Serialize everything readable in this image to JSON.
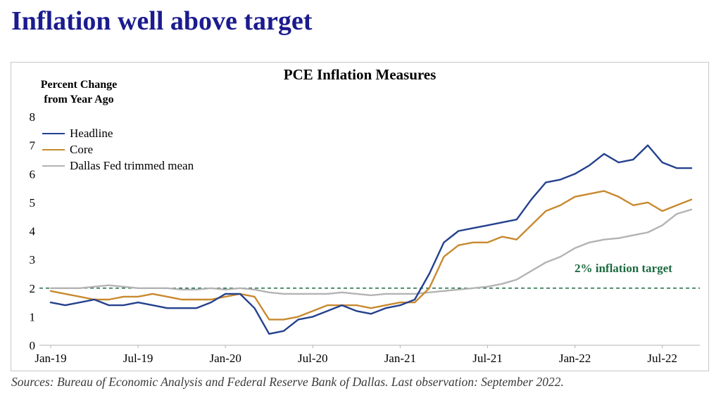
{
  "page": {
    "title": "Inflation well above target",
    "source_note": "Sources: Bureau of Economic Analysis and Federal Reserve Bank of Dallas. Last observation: September 2022."
  },
  "colors": {
    "page_title": "#1b1b8f",
    "headline_line": "#24418e",
    "core_line": "#c8892f",
    "trimmed_mean_line": "#b3b3b3",
    "reference_line": "#1d6b40",
    "axis": "#b3b3b3",
    "chart_border": "#c8c8c8"
  },
  "chart_data": {
    "type": "line",
    "title": "PCE Inflation Measures",
    "ylabel": "Percent Change from Year Ago",
    "ylabel_lines": [
      "Percent Change",
      "from Year Ago"
    ],
    "ylim": [
      0,
      8
    ],
    "ytick_step": 1,
    "grid": false,
    "legend_position": "top-left",
    "x": [
      "Jan-19",
      "Feb-19",
      "Mar-19",
      "Apr-19",
      "May-19",
      "Jun-19",
      "Jul-19",
      "Aug-19",
      "Sep-19",
      "Oct-19",
      "Nov-19",
      "Dec-19",
      "Jan-20",
      "Feb-20",
      "Mar-20",
      "Apr-20",
      "May-20",
      "Jun-20",
      "Jul-20",
      "Aug-20",
      "Sep-20",
      "Oct-20",
      "Nov-20",
      "Dec-20",
      "Jan-21",
      "Feb-21",
      "Mar-21",
      "Apr-21",
      "May-21",
      "Jun-21",
      "Jul-21",
      "Aug-21",
      "Sep-21",
      "Oct-21",
      "Nov-21",
      "Dec-21",
      "Jan-22",
      "Feb-22",
      "Mar-22",
      "Apr-22",
      "May-22",
      "Jun-22",
      "Jul-22",
      "Aug-22",
      "Sep-22"
    ],
    "x_tick_labels": [
      "Jan-19",
      "Jul-19",
      "Jan-20",
      "Jul-20",
      "Jan-21",
      "Jul-21",
      "Jan-22",
      "Jul-22"
    ],
    "x_tick_indices": [
      0,
      6,
      12,
      18,
      24,
      30,
      36,
      42
    ],
    "series": [
      {
        "name": "Headline",
        "color": "#24418e",
        "values": [
          1.5,
          1.4,
          1.5,
          1.6,
          1.4,
          1.4,
          1.5,
          1.4,
          1.3,
          1.3,
          1.3,
          1.5,
          1.8,
          1.8,
          1.3,
          0.4,
          0.5,
          0.9,
          1.0,
          1.2,
          1.4,
          1.2,
          1.1,
          1.3,
          1.4,
          1.6,
          2.5,
          3.6,
          4.0,
          4.1,
          4.2,
          4.3,
          4.4,
          5.1,
          5.7,
          5.8,
          6.0,
          6.3,
          6.7,
          6.4,
          6.5,
          7.0,
          6.4,
          6.2,
          6.2
        ]
      },
      {
        "name": "Core",
        "color": "#c8892f",
        "values": [
          1.9,
          1.8,
          1.7,
          1.6,
          1.6,
          1.7,
          1.7,
          1.8,
          1.7,
          1.6,
          1.6,
          1.6,
          1.7,
          1.8,
          1.7,
          0.9,
          0.9,
          1.0,
          1.2,
          1.4,
          1.4,
          1.4,
          1.3,
          1.4,
          1.5,
          1.5,
          2.0,
          3.1,
          3.5,
          3.6,
          3.6,
          3.8,
          3.7,
          4.2,
          4.7,
          4.9,
          5.2,
          5.3,
          5.4,
          5.2,
          4.9,
          5.0,
          4.7,
          4.9,
          5.1
        ]
      },
      {
        "name": "Dallas Fed trimmed mean",
        "color": "#b3b3b3",
        "values": [
          2.0,
          2.0,
          2.0,
          2.05,
          2.1,
          2.05,
          2.0,
          2.0,
          2.0,
          1.95,
          1.95,
          2.0,
          1.95,
          2.0,
          1.95,
          1.85,
          1.8,
          1.8,
          1.8,
          1.8,
          1.85,
          1.8,
          1.75,
          1.8,
          1.8,
          1.8,
          1.85,
          1.9,
          1.95,
          2.0,
          2.05,
          2.15,
          2.3,
          2.6,
          2.9,
          3.1,
          3.4,
          3.6,
          3.7,
          3.75,
          3.85,
          3.95,
          4.2,
          4.6,
          4.75
        ]
      }
    ],
    "reference_line": {
      "value": 2,
      "label": "2% inflation target",
      "color": "#1d6b40",
      "style": "dashed"
    }
  }
}
